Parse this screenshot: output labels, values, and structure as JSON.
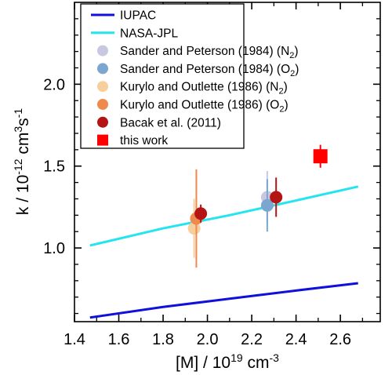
{
  "chart_data": {
    "type": "scatter",
    "xlim": [
      1.4,
      2.78
    ],
    "ylim": [
      0.55,
      2.5
    ],
    "x_ticks": [
      1.4,
      1.6,
      1.8,
      2.0,
      2.2,
      2.4,
      2.6
    ],
    "x_tick_labels": [
      "1.4",
      "1.6",
      "1.8",
      "2.0",
      "2.2",
      "2.4",
      "2.6"
    ],
    "y_ticks": [
      1.0,
      1.5,
      2.0
    ],
    "y_tick_labels": [
      "1.0",
      "1.5",
      "2.0"
    ],
    "xlabel": {
      "main": "[M] / 10",
      "sup": "19",
      "tail": " cm",
      "sup2": "-3"
    },
    "ylabel": {
      "a": "k / 10",
      "a_sup": "-12",
      "b": " cm",
      "b_sup": "3",
      "c": "s",
      "c_sup": "-1"
    },
    "legend_position": "top-left",
    "series": [
      {
        "name": "IUPAC",
        "kind": "line",
        "color": "#1010dd",
        "x": [
          1.47,
          1.8,
          2.1,
          2.4,
          2.68
        ],
        "y": [
          0.575,
          0.64,
          0.69,
          0.74,
          0.785
        ]
      },
      {
        "name": "NASA-JPL",
        "kind": "line",
        "color": "#22e5f0",
        "x": [
          1.47,
          1.8,
          2.1,
          2.4,
          2.68
        ],
        "y": [
          1.015,
          1.12,
          1.2,
          1.29,
          1.375
        ]
      },
      {
        "name": "Sander and Peterson (1984) (N",
        "sub": "2",
        "tail": ")",
        "kind": "point",
        "color": "#c8c8e2",
        "x": [
          2.27
        ],
        "y": [
          1.31
        ],
        "err": [
          0.16
        ]
      },
      {
        "name": "Sander and Peterson (1984) (O",
        "sub": "2",
        "tail": ")",
        "kind": "point",
        "color": "#7aa6cf",
        "x": [
          2.27
        ],
        "y": [
          1.26
        ],
        "err": [
          0.16
        ]
      },
      {
        "name": "Kurylo and Outlette (1986) (N",
        "sub": "2",
        "tail": ")",
        "kind": "point",
        "color": "#f7cf9d",
        "x": [
          1.94
        ],
        "y": [
          1.12
        ],
        "err": [
          0.18
        ]
      },
      {
        "name": "Kurylo and Outlette (1986) (O",
        "sub": "2",
        "tail": ")",
        "kind": "point",
        "color": "#ee8a4e",
        "x": [
          1.95
        ],
        "y": [
          1.18
        ],
        "err": [
          0.3
        ]
      },
      {
        "name": "Bacak et al. (2011)",
        "kind": "point",
        "color": "#b51414",
        "x": [
          1.97,
          2.31
        ],
        "y": [
          1.21,
          1.31
        ],
        "err": [
          0.055,
          0.12
        ]
      },
      {
        "name": "this work",
        "kind": "square",
        "color": "#ff0000",
        "x": [
          2.51
        ],
        "y": [
          1.56
        ],
        "err": [
          0.07
        ]
      }
    ]
  }
}
